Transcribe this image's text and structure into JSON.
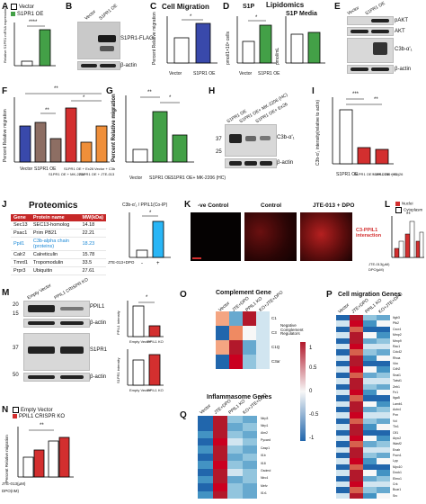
{
  "panels": {
    "A": {
      "letter": "A",
      "legend": [
        "Vector",
        "S1PR1 OE"
      ],
      "ylabel": "Relative S1PR1 mRNA expression",
      "sig": "****"
    },
    "B": {
      "letter": "B",
      "lanes": [
        "Vector",
        "S1PR1 OE"
      ],
      "labels": [
        "S1PR1-FLAG",
        "β-actin"
      ]
    },
    "C": {
      "letter": "C",
      "title": "Cell Migration",
      "ylabel": "Percent Relative migration",
      "sig": "*",
      "categories": [
        "Vector",
        "S1PR1 OE"
      ]
    },
    "D": {
      "letter": "D",
      "title_left": "S1P",
      "title_main": "Lipidomics",
      "title_right": "S1P Media",
      "ylabel_left": "pmol/1×10⁶ cells",
      "ylabel_right": "pmol/mL",
      "sig": "*",
      "categories": [
        "Vector",
        "S1PR1 OE"
      ]
    },
    "E": {
      "letter": "E",
      "lanes": [
        "Vector",
        "S1PR1 OE"
      ],
      "labels": [
        "pAKT",
        "AKT",
        "C3b-α'₁",
        "β-actin"
      ]
    },
    "F": {
      "letter": "F",
      "ylabel": "Percent Relative migration",
      "sig_top": "**",
      "sig_mid": "**",
      "sig_right": "*",
      "categories": [
        "Vector",
        "S1PR1 OE",
        "S1PR1 OE + MK-2206",
        "S1PR1 OE + Ex26",
        "S1PR1 OE + JTE-013",
        "Vector + C3b"
      ]
    },
    "G": {
      "letter": "G",
      "ylabel": "Percent Relative migration",
      "sig_a": "**",
      "sig_b": "*",
      "categories": [
        "Vector",
        "S1PR1 OE",
        "S1PR1 OE+ MK-2206 (HC)"
      ]
    },
    "H": {
      "letter": "H",
      "lanes": [
        "S1PR1 OE",
        "S1PR1 OE+ MK-2206 (HC)",
        "S1PR1 OE+ Ex26"
      ],
      "labels": [
        "C3b-α'₁",
        "β-actin"
      ],
      "mw": [
        "37",
        "25"
      ]
    },
    "I": {
      "letter": "I",
      "ylabel": "C3b-α'₁ intensity(relative to actin)",
      "sig_a": "***",
      "sig_b": "**",
      "categories": [
        "S1PR1 OE",
        "S1PR1 OE + MK-2206 (HC)",
        "S1PR1 OE + Ex 26"
      ]
    },
    "J": {
      "letter": "J",
      "title": "Proteomics",
      "headers": [
        "Gene",
        "Protein name",
        "MW(kDa)"
      ],
      "rows": [
        [
          "Sec13",
          "SEC13-homolog",
          "14.18"
        ],
        [
          "Psac1",
          "Prim PB21",
          "22.21"
        ],
        [
          "Ppil1",
          "C3b-alpha chain (proteins)",
          "18.23"
        ],
        [
          "Calr2",
          "Calreticulin",
          "15.78"
        ],
        [
          "Tmrd1",
          "Tropomodulin",
          "33.5"
        ],
        [
          "Prpr3",
          "Ubiquitin",
          "27.61"
        ]
      ],
      "chart_title": "C3b-α'₁ / PPIL1(Co-IP)",
      "xrow": "JTE-013+DPO",
      "xvals": [
        "-",
        "+"
      ],
      "sig": "*"
    },
    "K": {
      "letter": "K",
      "images": [
        "-ve Control",
        "Control",
        "JTE-013 + DPO"
      ],
      "annot": "C3-PPIL1 interaction"
    },
    "L": {
      "letter": "L",
      "legend": [
        "Nuclei",
        "Cytoplasm"
      ],
      "sig": "**",
      "xrow_a": "JTE-013(µM)",
      "xrow_b": "DPO(µM)"
    },
    "M": {
      "letter": "M",
      "lanes": [
        "Empty Vector",
        "PPIL1 CRISPR KO"
      ],
      "labels": [
        "PPIL1",
        "β-actin",
        "S1PR1",
        "β-actin"
      ],
      "mw": [
        "20",
        "15",
        "37",
        "50"
      ],
      "chart1_x": [
        "Empty Vector",
        "PPIL1 KO"
      ],
      "chart2_x": [
        "Empty Vector",
        "PPIL1 KO"
      ],
      "sig": "*",
      "ylabel1": "PPIL1 intensity",
      "ylabel2": "S1PR1 intensity"
    },
    "N": {
      "letter": "N",
      "legend": [
        "Empty Vector",
        "PPIL1 CRISPR KO"
      ],
      "ylabel": "Percent Relative migration",
      "xrow_a": "JTE-013(µM)",
      "xrow_b": "DPO(nM)",
      "sig": "**"
    },
    "O": {
      "letter": "O",
      "title": "Complement Gene",
      "columns": [
        "Vector",
        "JTE+DPO",
        "PPIL1 KO",
        "KO+JTE+DPO"
      ],
      "rows": [
        "C1",
        "C3",
        "C1Q",
        "C3ar"
      ],
      "side_label": "Negative Complement Regulators",
      "scale_ticks": [
        "1",
        "0.5",
        "0",
        "-0.5",
        "-1"
      ]
    },
    "P": {
      "letter": "P",
      "title": "Cell migration Genes",
      "columns": [
        "Vector",
        "JTE+DPO",
        "PPIL1 KO",
        "KO+JTE+DPO"
      ],
      "rows": [
        "Itgb3",
        "Ptk2",
        "Cxcr4",
        "Mmp2",
        "Mmp9",
        "Rac1",
        "Cdc42",
        "Rhoa",
        "Vim",
        "Cdh2",
        "Snai1",
        "Twist1",
        "Zeb1",
        "Fn1",
        "Itga5",
        "Lamb1",
        "Actn4",
        "Pxn",
        "Vcl",
        "Tln1",
        "Cfl1",
        "Arpc2",
        "Wasf2",
        "Enah",
        "Fscn1",
        "Lpp",
        "Myo10",
        "Dock1",
        "Elmo1",
        "Crk",
        "Bcar1",
        "Src"
      ]
    },
    "Q": {
      "letter": "Q",
      "title": "Inflammasome Genes",
      "columns": [
        "Vector",
        "JTE+DPO",
        "PPIL1 KO",
        "KO+JTE+DPO"
      ],
      "rows": [
        "Nlrp3",
        "Nlrp1",
        "Aim2",
        "Pycard",
        "Casp1",
        "Il1b",
        "Il18",
        "Gsdmd",
        "Nlrc4",
        "Mefv",
        "Il1r1"
      ]
    }
  },
  "colors": {
    "red": "#d32f2f",
    "green": "#43a047",
    "blue": "#3949ab",
    "brown": "#8d6e63",
    "orange": "#ef8f3a",
    "white": "#ffffff",
    "heat_hi": "#b71c1c",
    "heat_mid": "#f7f7f7",
    "heat_lo": "#1f5ea8"
  },
  "chart_data": [
    {
      "panel": "A",
      "type": "bar",
      "categories": [
        "Vector",
        "S1PR1 OE"
      ],
      "values": [
        1,
        10
      ]
    },
    {
      "panel": "C",
      "type": "bar",
      "title": "Cell Migration",
      "categories": [
        "Vector",
        "S1PR1 OE"
      ],
      "values": [
        100,
        155
      ],
      "ylabel": "Percent Relative migration"
    },
    {
      "panel": "D-left",
      "type": "bar",
      "title": "S1P",
      "categories": [
        "Vector",
        "S1PR1 OE"
      ],
      "values": [
        0.4,
        0.75
      ]
    },
    {
      "panel": "D-right",
      "type": "bar",
      "title": "S1P Media",
      "categories": [
        "Vector",
        "S1PR1 OE"
      ],
      "values": [
        1.0,
        1.05
      ]
    },
    {
      "panel": "F",
      "type": "bar",
      "categories": [
        "Vector",
        "S1PR1 OE",
        "S1PR1 OE + MK-2206",
        "S1PR1 OE + Ex26",
        "S1PR1 OE + JTE-013",
        "Vector + C3b"
      ],
      "values": [
        130,
        150,
        85,
        200,
        75,
        130
      ]
    },
    {
      "panel": "G",
      "type": "bar",
      "categories": [
        "Vector",
        "S1PR1 OE",
        "S1PR1 OE+ MK-2206 (HC)"
      ],
      "values": [
        20,
        85,
        45
      ]
    },
    {
      "panel": "I",
      "type": "bar",
      "categories": [
        "S1PR1 OE",
        "S1PR1 OE + MK-2206 (HC)",
        "S1PR1 OE + Ex 26"
      ],
      "values": [
        2.0,
        0.6,
        0.55
      ]
    },
    {
      "panel": "J",
      "type": "bar",
      "categories": [
        "-",
        "+"
      ],
      "values": [
        0.3,
        1.6
      ]
    },
    {
      "panel": "L",
      "type": "bar",
      "series": [
        {
          "name": "Nuclei",
          "values": [
            20,
            55,
            35
          ]
        },
        {
          "name": "Cytoplasm",
          "values": [
            35,
            90,
            60
          ]
        }
      ]
    },
    {
      "panel": "M-top",
      "type": "bar",
      "categories": [
        "Empty Vector",
        "PPIL1 KO"
      ],
      "values": [
        1.0,
        0.35
      ]
    },
    {
      "panel": "M-bottom",
      "type": "bar",
      "categories": [
        "Empty Vector",
        "PPIL1 KO"
      ],
      "values": [
        0.9,
        1.1
      ]
    },
    {
      "panel": "N",
      "type": "bar",
      "series": [
        {
          "name": "Empty Vector",
          "values": [
            70,
            110
          ]
        },
        {
          "name": "PPIL1 CRISPR KO",
          "values": [
            95,
            120
          ]
        }
      ]
    }
  ]
}
